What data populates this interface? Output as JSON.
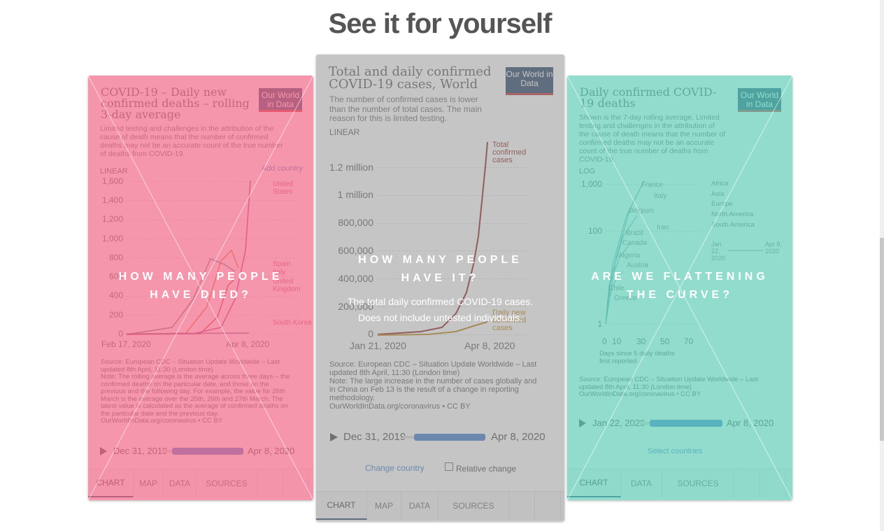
{
  "header": {
    "title": "See it for yourself"
  },
  "cards": [
    {
      "question": "HOW MANY PEOPLE HAVE DIED?",
      "chart": {
        "title": "COVID-19 – Daily new confirmed deaths – rolling 3-day average",
        "logo": "Our World in Data",
        "subtitle": "Limited testing and challenges in the attribution of the cause of death means that the number of confirmed deaths may not be an accurate count of the true number of deaths from COVID-19.",
        "scale": "LINEAR",
        "add": "Add country",
        "yticks": [
          "1,600",
          "1,400",
          "1,200",
          "1,000",
          "800",
          "600",
          "400",
          "200",
          "0"
        ],
        "xticks": [
          "Feb 17, 2020",
          "Apr 8, 2020"
        ],
        "labels": [
          "United States",
          "Spain",
          "Italy",
          "United Kingdom",
          "South Korea"
        ],
        "source": "Source: European CDC – Situation Update Worldwide – Last updated 8th April, 11:30 (London time)",
        "note": "Note: The rolling average is the average across three days – the confirmed deaths on the particular date, and those on the previous and the following day. For example, the value for 26th March is the average over the 25th, 26th and 27th March. The latest value is calculated as the average of confirmed deaths on the particular date and the previous day.",
        "credit": "OurWorldInData.org/coronavirus • CC BY",
        "timeline": [
          "Dec 31, 2019",
          "Apr 8, 2020"
        ],
        "tabs": [
          "CHART",
          "MAP",
          "DATA",
          "SOURCES"
        ]
      }
    },
    {
      "question": "HOW MANY PEOPLE HAVE IT?",
      "description": "The total daily confirmed COVID-19 cases. Does not include untested individuals.",
      "chart": {
        "title": "Total and daily confirmed COVID-19 cases, World",
        "logo": "Our World in Data",
        "subtitle": "The number of confirmed cases is lower than the number of total cases. The main reason for this is limited testing.",
        "scale": "LINEAR",
        "yticks": [
          "1.2 million",
          "1 million",
          "800,000",
          "600,000",
          "400,000",
          "200,000",
          "0"
        ],
        "xticks": [
          "Jan 21, 2020",
          "Apr 8, 2020"
        ],
        "labels": [
          "Total confirmed cases",
          "Daily new confirmed cases"
        ],
        "source": "Source: European CDC – Situation Update Worldwide – Last updated 8th April, 11:30 (London time)",
        "note": "Note: The large increase in the number of cases globally and in China on Feb 13 is the result of a change in reporting methodology.",
        "credit": "OurWorldInData.org/coronavirus • CC BY",
        "timeline": [
          "Dec 31, 2019",
          "Apr 8, 2020"
        ],
        "controls": [
          "Change country",
          "Relative change"
        ],
        "tabs": [
          "CHART",
          "MAP",
          "DATA",
          "SOURCES"
        ]
      }
    },
    {
      "question": "ARE WE FLATTENING THE CURVE?",
      "chart": {
        "title": "Daily confirmed COVID-19 deaths",
        "logo": "Our World in Data",
        "subtitle": "Shown is the 7-day rolling average. Limited testing and challenges in the attribution of the cause of death means that the number of confirmed deaths may not be an accurate count of the true number of deaths from COVID-19.",
        "scale": "LOG",
        "yticks": [
          "1,000",
          "100",
          "1"
        ],
        "xticks": [
          "0",
          "10",
          "30",
          "50",
          "70"
        ],
        "xlabel": "Days since 5 daily deaths first reported",
        "labels": [
          "France",
          "Italy",
          "Belgium",
          "Iran",
          "Brazil",
          "Canada",
          "Algeria",
          "Austria",
          "Chile",
          "Greece"
        ],
        "legend": [
          "Africa",
          "Asia",
          "Europe",
          "North America",
          "South America"
        ],
        "mini_timeline": [
          "Jan 22, 2020",
          "Apr 8, 2020"
        ],
        "source": "Source: European CDC – Situation Update Worldwide – Last updated 8th April, 11:30 (London time)",
        "credit": "OurWorldInData.org/coronavirus • CC BY",
        "timeline": [
          "Jan 22, 2020",
          "Apr 8, 2020"
        ],
        "select": "Select countries",
        "tabs": [
          "CHART",
          "DATA",
          "SOURCES"
        ]
      }
    }
  ]
}
